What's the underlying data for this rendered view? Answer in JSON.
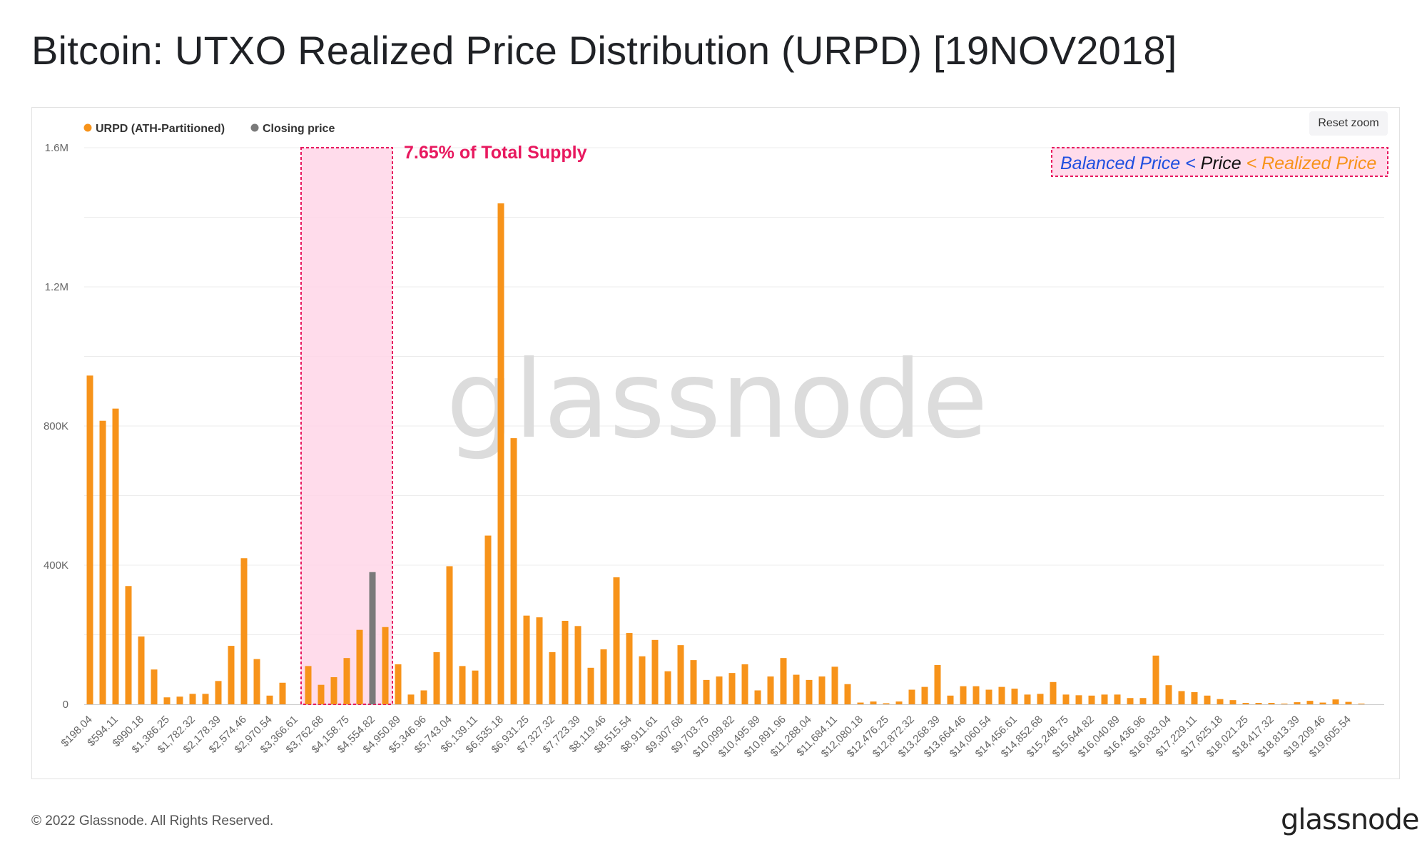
{
  "page": {
    "title": "Bitcoin: UTXO Realized Price Distribution (URPD) [19NOV2018]",
    "reset_zoom_label": "Reset zoom",
    "copyright": "© 2022 Glassnode. All Rights Reserved.",
    "footer_logo": "glassnode",
    "watermark": "glassnode"
  },
  "chart_data": {
    "type": "bar",
    "title": "Bitcoin: UTXO Realized Price Distribution (URPD) [19NOV2018]",
    "legend": [
      {
        "name": "URPD (ATH-Partitioned)",
        "color": "#f7931a"
      },
      {
        "name": "Closing price",
        "color": "#7a7a7a"
      }
    ],
    "legend_position": "top-left",
    "grid": true,
    "ylim": [
      0,
      1600000
    ],
    "yticks": [
      {
        "value": 0,
        "label": "0"
      },
      {
        "value": 400000,
        "label": "400K"
      },
      {
        "value": 800000,
        "label": "800K"
      },
      {
        "value": 1200000,
        "label": "1.2M"
      },
      {
        "value": 1600000,
        "label": "1.6M"
      }
    ],
    "x_tick_labels": [
      "$198.04",
      "$594.11",
      "$990.18",
      "$1,386.25",
      "$1,782.32",
      "$2,178.39",
      "$2,574.46",
      "$2,970.54",
      "$3,366.61",
      "$3,762.68",
      "$4,158.75",
      "$4,554.82",
      "$4,950.89",
      "$5,346.96",
      "$5,743.04",
      "$6,139.11",
      "$6,535.18",
      "$6,931.25",
      "$7,327.32",
      "$7,723.39",
      "$8,119.46",
      "$8,515.54",
      "$8,911.61",
      "$9,307.68",
      "$9,703.75",
      "$10,099.82",
      "$10,495.89",
      "$10,891.96",
      "$11,288.04",
      "$11,684.11",
      "$12,080.18",
      "$12,476.25",
      "$12,872.32",
      "$13,268.39",
      "$13,664.46",
      "$14,060.54",
      "$14,456.61",
      "$14,852.68",
      "$15,248.75",
      "$15,644.82",
      "$16,040.89",
      "$16,436.96",
      "$16,833.04",
      "$17,229.11",
      "$17,625.18",
      "$18,021.25",
      "$18,417.32",
      "$18,813.39",
      "$19,209.46",
      "$19,605.54"
    ],
    "values": [
      945000,
      815000,
      850000,
      340000,
      195000,
      100000,
      20000,
      22000,
      30000,
      30000,
      67000,
      168000,
      420000,
      130000,
      25000,
      62000,
      0,
      110000,
      56000,
      78000,
      133000,
      214000,
      380000,
      222000,
      115000,
      28000,
      40000,
      150000,
      397000,
      110000,
      97000,
      485000,
      1440000,
      765000,
      255000,
      250000,
      150000,
      240000,
      225000,
      105000,
      158000,
      365000,
      205000,
      138000,
      185000,
      95000,
      170000,
      127000,
      70000,
      80000,
      90000,
      115000,
      40000,
      80000,
      133000,
      85000,
      70000,
      80000,
      108000,
      58000,
      5000,
      8000,
      3000,
      8000,
      42000,
      50000,
      113000,
      25000,
      52000,
      52000,
      42000,
      50000,
      45000,
      28000,
      30000,
      64000,
      28000,
      26000,
      25000,
      28000,
      28000,
      18000,
      18000,
      140000,
      55000,
      38000,
      35000,
      25000,
      15000,
      12000,
      4000,
      4000,
      4000,
      2000,
      6000,
      10000,
      5000,
      14000,
      7000,
      2000
    ],
    "closing_price_index": 22,
    "annotations": {
      "supply_label": "7.65% of Total Supply",
      "highlight_bins": [
        17,
        23
      ],
      "box_legend": [
        {
          "text": "Balanced Price",
          "color": "#1f4fe0"
        },
        {
          "text": " < ",
          "color": "#1f4fe0"
        },
        {
          "text": "Price",
          "color": "#111111"
        },
        {
          "text": " < Realized Price",
          "color": "#f7931a"
        }
      ]
    },
    "colors": {
      "bar": "#f7931a",
      "closing": "#7a7a7a",
      "highlight_fill": "#ffd6e8",
      "highlight_stroke": "#e8195f",
      "grid": "#ececec",
      "axis_text": "#666666",
      "watermark": "#dcdcdc"
    }
  }
}
